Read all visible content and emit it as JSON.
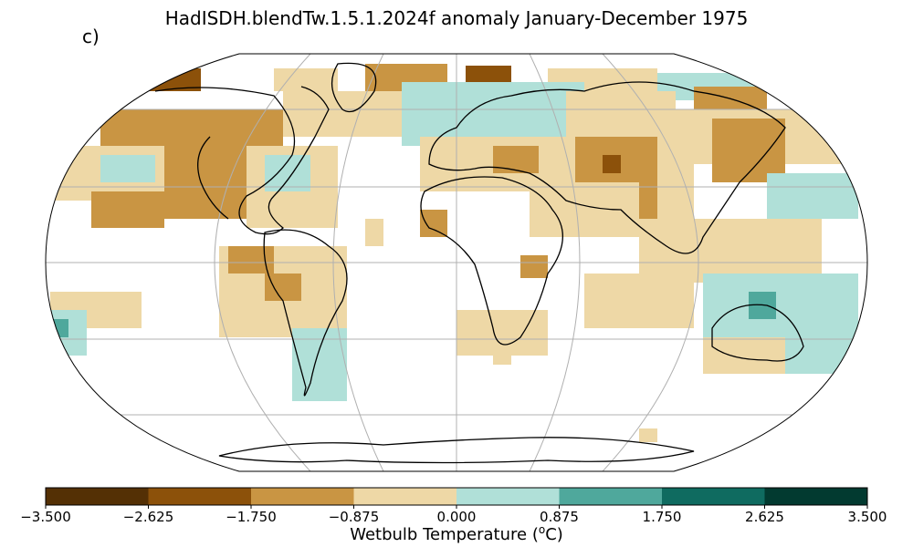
{
  "title": "HadISDH.blendTw.1.5.1.2024f anomaly January-December 1975",
  "panel_label": "c)",
  "colorbar": {
    "label_prefix": "Wetbulb Temperature (",
    "label_sup": "o",
    "label_suffix": "C)",
    "ticks": [
      "−3.500",
      "−2.625",
      "−1.750",
      "−0.875",
      "0.000",
      "0.875",
      "1.750",
      "2.625",
      "3.500"
    ],
    "colors": [
      "#543005",
      "#8c510a",
      "#c99543",
      "#eed8a6",
      "#b0e0d8",
      "#4fa89c",
      "#0f6b60",
      "#023a30"
    ]
  },
  "map": {
    "projection": "Robinson",
    "coastline_color": "#000000",
    "graticule_color": "#b0b0b0"
  }
}
